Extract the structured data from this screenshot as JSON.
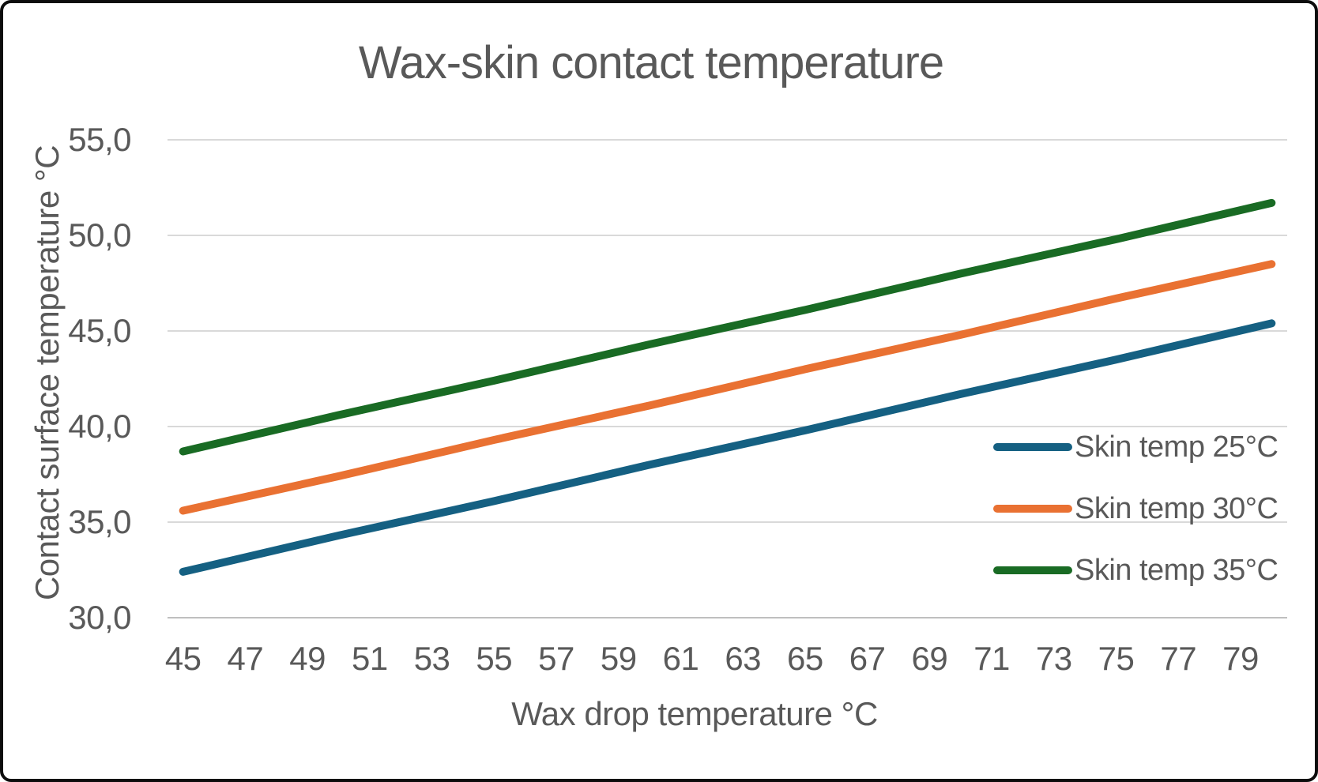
{
  "chart": {
    "title": "Wax-skin contact temperature",
    "colors": {
      "background": "#ffffff",
      "frame_border": "#0d0d0d",
      "text": "#595959",
      "gridline": "#d9d9d9",
      "axis_line": "#bfbfbf",
      "series_blue": "#156082",
      "series_orange": "#e97132",
      "series_green": "#196b24"
    }
  },
  "chart_data": {
    "type": "line",
    "title": "Wax-skin contact temperature",
    "xlabel": "Wax drop temperature °C",
    "ylabel": "Contact surface temperature °C",
    "x": [
      45,
      50,
      55,
      60,
      65,
      70,
      75,
      80
    ],
    "series": [
      {
        "name": "Skin temp 25°C",
        "color": "#156082",
        "values": [
          32.4,
          34.3,
          36.1,
          38.0,
          39.8,
          41.7,
          43.5,
          45.4
        ]
      },
      {
        "name": "Skin temp 30°C",
        "color": "#e97132",
        "values": [
          35.6,
          37.4,
          39.3,
          41.1,
          43.0,
          44.8,
          46.7,
          48.5
        ]
      },
      {
        "name": "Skin temp 35°C",
        "color": "#196b24",
        "values": [
          38.7,
          40.6,
          42.4,
          44.3,
          46.1,
          48.0,
          49.8,
          51.7
        ]
      }
    ],
    "xlim": [
      44.5,
      80.5
    ],
    "ylim": [
      30,
      55
    ],
    "ytick_values": [
      30,
      35,
      40,
      45,
      50,
      55
    ],
    "ytick_labels": [
      "30,0",
      "35,0",
      "40,0",
      "45,0",
      "50,0",
      "55,0"
    ],
    "xtick_values": [
      45,
      47,
      49,
      51,
      53,
      55,
      57,
      59,
      61,
      63,
      65,
      67,
      69,
      71,
      73,
      75,
      77,
      79
    ],
    "grid": "horizontal",
    "legend_position": "inside-right",
    "legend_entries": [
      "Skin temp 25°C",
      "Skin temp 30°C",
      "Skin temp 35°C"
    ],
    "decimal_separator": ","
  }
}
